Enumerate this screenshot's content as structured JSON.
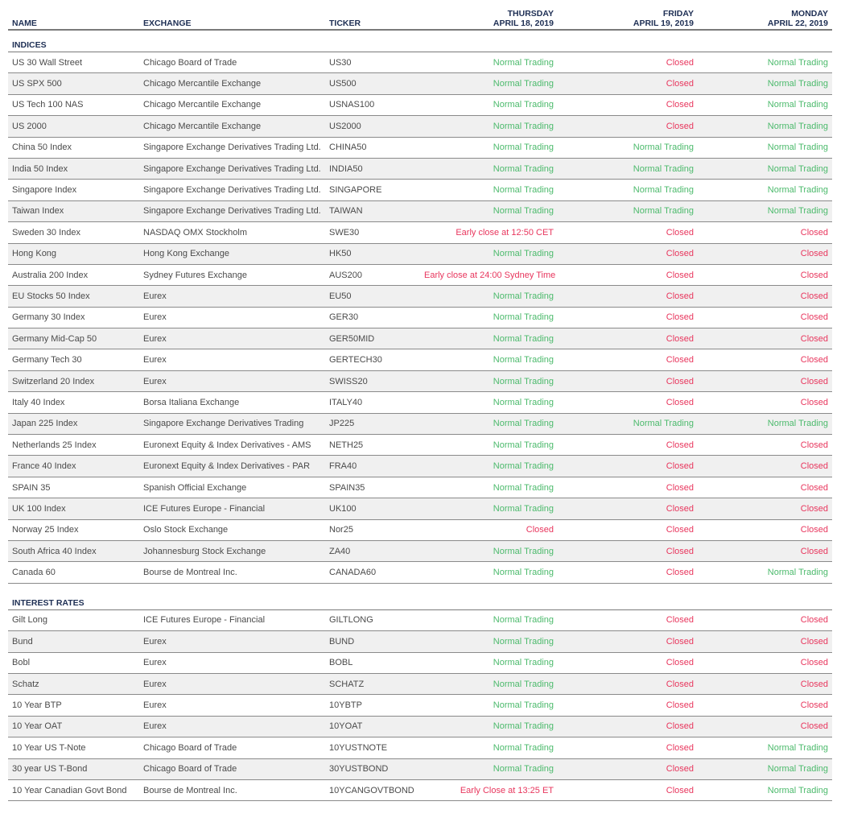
{
  "headers": {
    "name": "NAME",
    "exchange": "EXCHANGE",
    "ticker": "TICKER",
    "day1": {
      "weekday": "THURSDAY",
      "date": "APRIL 18, 2019"
    },
    "day2": {
      "weekday": "FRIDAY",
      "date": "APRIL 19, 2019"
    },
    "day3": {
      "weekday": "MONDAY",
      "date": "APRIL 22, 2019"
    }
  },
  "status_colors": {
    "normal": "#4cba6c",
    "closed": "#e8365d"
  },
  "sections": [
    {
      "title": "INDICES",
      "rows": [
        [
          "US 30 Wall Street",
          "Chicago Board of Trade",
          "US30",
          "Normal Trading",
          "Closed",
          "Normal Trading"
        ],
        [
          "US SPX 500",
          "Chicago Mercantile Exchange",
          "US500",
          "Normal Trading",
          "Closed",
          "Normal Trading"
        ],
        [
          "US Tech 100 NAS",
          "Chicago Mercantile Exchange",
          "USNAS100",
          "Normal Trading",
          "Closed",
          "Normal Trading"
        ],
        [
          "US 2000",
          "Chicago Mercantile Exchange",
          "US2000",
          "Normal Trading",
          "Closed",
          "Normal Trading"
        ],
        [
          "China 50 Index",
          "Singapore Exchange Derivatives Trading Ltd.",
          "CHINA50",
          "Normal Trading",
          "Normal Trading",
          "Normal Trading"
        ],
        [
          "India 50 Index",
          "Singapore Exchange Derivatives Trading Ltd.",
          "INDIA50",
          "Normal Trading",
          "Normal Trading",
          "Normal Trading"
        ],
        [
          "Singapore Index",
          "Singapore Exchange Derivatives Trading Ltd.",
          "SINGAPORE",
          "Normal Trading",
          "Normal Trading",
          "Normal Trading"
        ],
        [
          "Taiwan Index",
          "Singapore Exchange Derivatives Trading Ltd.",
          "TAIWAN",
          "Normal Trading",
          "Normal Trading",
          "Normal Trading"
        ],
        [
          "Sweden 30 Index",
          "NASDAQ OMX Stockholm",
          "SWE30",
          "Early close at 12:50 CET",
          "Closed",
          "Closed"
        ],
        [
          "Hong Kong",
          "Hong Kong Exchange",
          "HK50",
          "Normal Trading",
          "Closed",
          "Closed"
        ],
        [
          "Australia 200 Index",
          "Sydney Futures Exchange",
          "AUS200",
          "Early close at 24:00 Sydney Time",
          "Closed",
          "Closed"
        ],
        [
          "EU Stocks 50 Index",
          "Eurex",
          "EU50",
          "Normal Trading",
          "Closed",
          "Closed"
        ],
        [
          "Germany 30 Index",
          "Eurex",
          "GER30",
          "Normal Trading",
          "Closed",
          "Closed"
        ],
        [
          "Germany Mid-Cap 50",
          "Eurex",
          "GER50MID",
          "Normal Trading",
          "Closed",
          "Closed"
        ],
        [
          "Germany Tech 30",
          "Eurex",
          "GERTECH30",
          "Normal Trading",
          "Closed",
          "Closed"
        ],
        [
          "Switzerland 20 Index",
          "Eurex",
          "SWISS20",
          "Normal Trading",
          "Closed",
          "Closed"
        ],
        [
          "Italy 40 Index",
          "Borsa Italiana Exchange",
          "ITALY40",
          "Normal Trading",
          "Closed",
          "Closed"
        ],
        [
          "Japan 225 Index",
          "Singapore Exchange Derivatives Trading",
          "JP225",
          "Normal Trading",
          "Normal Trading",
          "Normal Trading"
        ],
        [
          "Netherlands 25 Index",
          "Euronext Equity & Index Derivatives - AMS",
          "NETH25",
          "Normal Trading",
          "Closed",
          "Closed"
        ],
        [
          "France 40 Index",
          "Euronext Equity & Index Derivatives - PAR",
          "FRA40",
          "Normal Trading",
          "Closed",
          "Closed"
        ],
        [
          "SPAIN 35",
          "Spanish Official Exchange",
          "SPAIN35",
          "Normal Trading",
          "Closed",
          "Closed"
        ],
        [
          "UK 100 Index",
          "ICE Futures Europe - Financial",
          "UK100",
          "Normal Trading",
          "Closed",
          "Closed"
        ],
        [
          "Norway 25 Index",
          "Oslo Stock Exchange",
          "Nor25",
          "Closed",
          "Closed",
          "Closed"
        ],
        [
          "South Africa 40 Index",
          "Johannesburg Stock Exchange",
          "ZA40",
          "Normal Trading",
          "Closed",
          "Closed"
        ],
        [
          "Canada 60",
          "Bourse de Montreal Inc.",
          "CANADA60",
          "Normal Trading",
          "Closed",
          "Normal Trading"
        ]
      ]
    },
    {
      "title": "INTEREST RATES",
      "rows": [
        [
          "Gilt Long",
          "ICE Futures Europe - Financial",
          "GILTLONG",
          "Normal Trading",
          "Closed",
          "Closed"
        ],
        [
          "Bund",
          "Eurex",
          "BUND",
          "Normal Trading",
          "Closed",
          "Closed"
        ],
        [
          "Bobl",
          "Eurex",
          "BOBL",
          "Normal Trading",
          "Closed",
          "Closed"
        ],
        [
          "Schatz",
          "Eurex",
          "SCHATZ",
          "Normal Trading",
          "Closed",
          "Closed"
        ],
        [
          "10 Year BTP",
          "Eurex",
          "10YBTP",
          "Normal Trading",
          "Closed",
          "Closed"
        ],
        [
          "10 Year OAT",
          "Eurex",
          "10YOAT",
          "Normal Trading",
          "Closed",
          "Closed"
        ],
        [
          "10 Year US T-Note",
          "Chicago Board of Trade",
          "10YUSTNOTE",
          "Normal Trading",
          "Closed",
          "Normal Trading"
        ],
        [
          "30 year US T-Bond",
          "Chicago Board of Trade",
          "30YUSTBOND",
          "Normal Trading",
          "Closed",
          "Normal Trading"
        ],
        [
          "10 Year Canadian Govt Bond",
          "Bourse de Montreal Inc.",
          "10YCANGOVTBOND",
          "Early Close at 13:25 ET",
          "Closed",
          "Normal Trading"
        ]
      ]
    }
  ]
}
